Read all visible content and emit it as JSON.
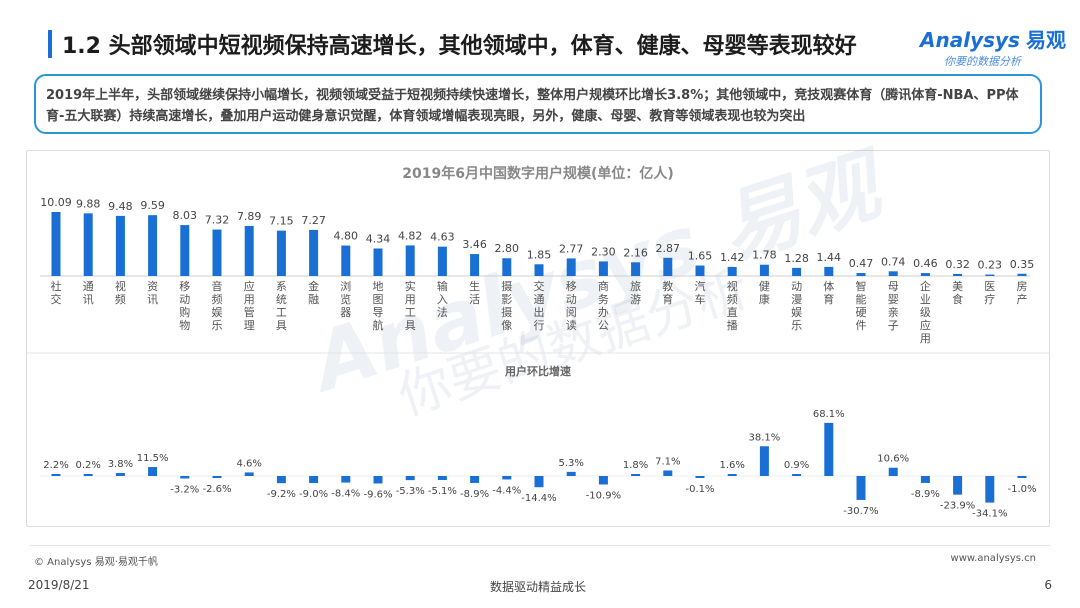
{
  "header": {
    "title": "1.2 头部领域中短视频保持高速增长，其他领域中，体育、健康、母婴等表现较好",
    "brand_name": "Analysys",
    "brand_cn": "易观",
    "brand_slogan": "你要的数据分析"
  },
  "summary": "2019年上半年，头部领域继续保持小幅增长，视频领域受益于短视频持续快速增长，整体用户规模环比增长3.8%；其他领域中，竞技观赛体育（腾讯体育-NBA、PP体育-五大联赛）持续高速增长，叠加用户运动健身意识觉醒，体育领域增幅表现亮眼，另外，健康、母婴、教育等领域表现也较为突出",
  "chart_data": {
    "type": "bar",
    "title": "2019年6月中国数字用户规模(单位：亿人)",
    "growth_title": "用户环比增速",
    "categories": [
      "社交",
      "通讯",
      "视频",
      "资讯",
      "移动购物",
      "音频娱乐",
      "应用管理",
      "系统工具",
      "金融",
      "浏览器",
      "地图导航",
      "实用工具",
      "输入法",
      "生活",
      "摄影摄像",
      "交通出行",
      "移动阅读",
      "商务办公",
      "旅游",
      "教育",
      "汽车",
      "视频直播",
      "健康",
      "动漫娱乐",
      "体育",
      "智能硬件",
      "母婴亲子",
      "企业级应用",
      "美食",
      "医疗",
      "房产"
    ],
    "series": [
      {
        "name": "用户规模",
        "unit": "亿人",
        "values": [
          10.09,
          9.88,
          9.48,
          9.59,
          8.03,
          7.32,
          7.89,
          7.15,
          7.27,
          4.8,
          4.34,
          4.82,
          4.63,
          3.46,
          2.8,
          1.85,
          2.77,
          2.3,
          2.16,
          2.87,
          1.65,
          1.42,
          1.78,
          1.28,
          1.44,
          0.47,
          0.74,
          0.46,
          0.32,
          0.23,
          0.35
        ]
      },
      {
        "name": "用户环比增速",
        "unit": "%",
        "values": [
          2.2,
          0.2,
          3.8,
          11.5,
          -3.2,
          -2.6,
          4.6,
          -9.2,
          -9.0,
          -8.4,
          -9.6,
          -5.3,
          -5.1,
          -8.9,
          -4.4,
          -14.4,
          5.3,
          -10.9,
          1.8,
          7.1,
          -0.1,
          1.6,
          38.1,
          0.9,
          68.1,
          -30.7,
          10.6,
          -8.9,
          -23.9,
          -34.1,
          -1.0
        ]
      }
    ],
    "bar_color": "#1a6fd4"
  },
  "footer": {
    "copyright": "© Analysys 易观·易观千帆",
    "website": "www.analysys.cn",
    "date": "2019/8/21",
    "slogan": "数据驱动精益成长",
    "page": "6"
  }
}
